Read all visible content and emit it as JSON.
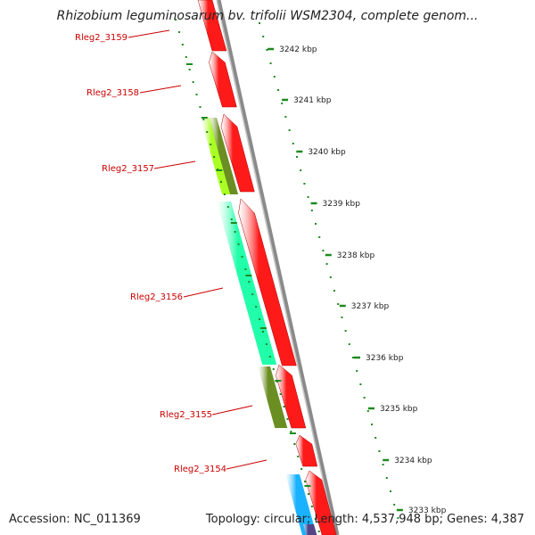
{
  "title": "Rhizobium leguminosarum bv. trifolii WSM2304, complete genom...",
  "footer": {
    "accession": "Accession: NC_011369",
    "topology": "Topology: circular; Length: 4,537,948 bp; Genes: 4,387"
  },
  "kbp_ticks": [
    "3242 kbp",
    "3241 kbp",
    "3240 kbp",
    "3239 kbp",
    "3238 kbp",
    "3237 kbp",
    "3236 kbp",
    "3235 kbp",
    "3234 kbp",
    "3233 kbp"
  ],
  "gene_labels": [
    "Rleg2_3159",
    "Rleg2_3158",
    "Rleg2_3157",
    "Rleg2_3156",
    "Rleg2_3155",
    "Rleg2_3154"
  ],
  "colors": {
    "forward_cds": "#ff1a1a",
    "backbone": "#8a8a8a",
    "gc_skew_dots": "#1f8a1f",
    "label_text": "#cc0000",
    "gene_3157_a": "#aaff22",
    "gene_3157_b": "#6b8e23",
    "gene_3156": "#22ffaa",
    "gene_3155": "#6b8e23",
    "gene_3153": "#1ab2ff",
    "gene_3152": "#554488"
  }
}
